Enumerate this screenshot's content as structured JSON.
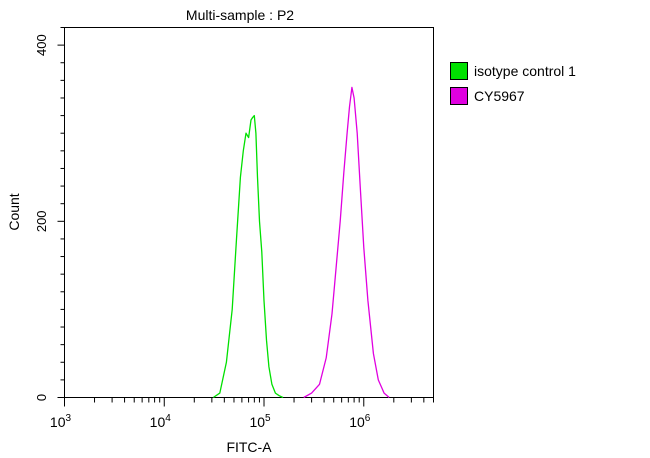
{
  "chart_data": {
    "type": "line",
    "title": "Multi-sample : P2",
    "xlabel": "FITC-A",
    "ylabel": "Count",
    "xscale": "log",
    "xlim": [
      1000,
      5000000
    ],
    "ylim": [
      0,
      420
    ],
    "x_ticks": [
      {
        "base": "10",
        "exp": "3",
        "value": 1000
      },
      {
        "base": "10",
        "exp": "4",
        "value": 10000
      },
      {
        "base": "10",
        "exp": "5",
        "value": 100000
      },
      {
        "base": "10",
        "exp": "6",
        "value": 1000000
      }
    ],
    "y_ticks": [
      {
        "label": "0",
        "value": 0
      },
      {
        "label": "200",
        "value": 200
      },
      {
        "label": "400",
        "value": 400
      }
    ],
    "legend_position": "right",
    "series": [
      {
        "name": "isotype control 1",
        "color": "#00e000",
        "x": [
          31000,
          36000,
          42000,
          48000,
          53000,
          58000,
          62000,
          66000,
          70000,
          74000,
          77000,
          80000,
          83000,
          86000,
          90000,
          95000,
          100000,
          106000,
          112000,
          120000,
          130000,
          142000,
          155000
        ],
        "y": [
          0,
          5,
          40,
          100,
          180,
          250,
          280,
          300,
          295,
          315,
          318,
          320,
          300,
          250,
          200,
          165,
          110,
          65,
          35,
          15,
          5,
          2,
          0
        ]
      },
      {
        "name": "CY5967",
        "color": "#e000e0",
        "x": [
          250000,
          300000,
          360000,
          420000,
          480000,
          530000,
          580000,
          630000,
          680000,
          720000,
          760000,
          800000,
          860000,
          920000,
          1000000,
          1100000,
          1250000,
          1400000,
          1600000,
          1800000
        ],
        "y": [
          0,
          5,
          15,
          45,
          95,
          150,
          200,
          255,
          300,
          330,
          352,
          340,
          300,
          240,
          170,
          110,
          50,
          20,
          5,
          0
        ]
      }
    ]
  }
}
